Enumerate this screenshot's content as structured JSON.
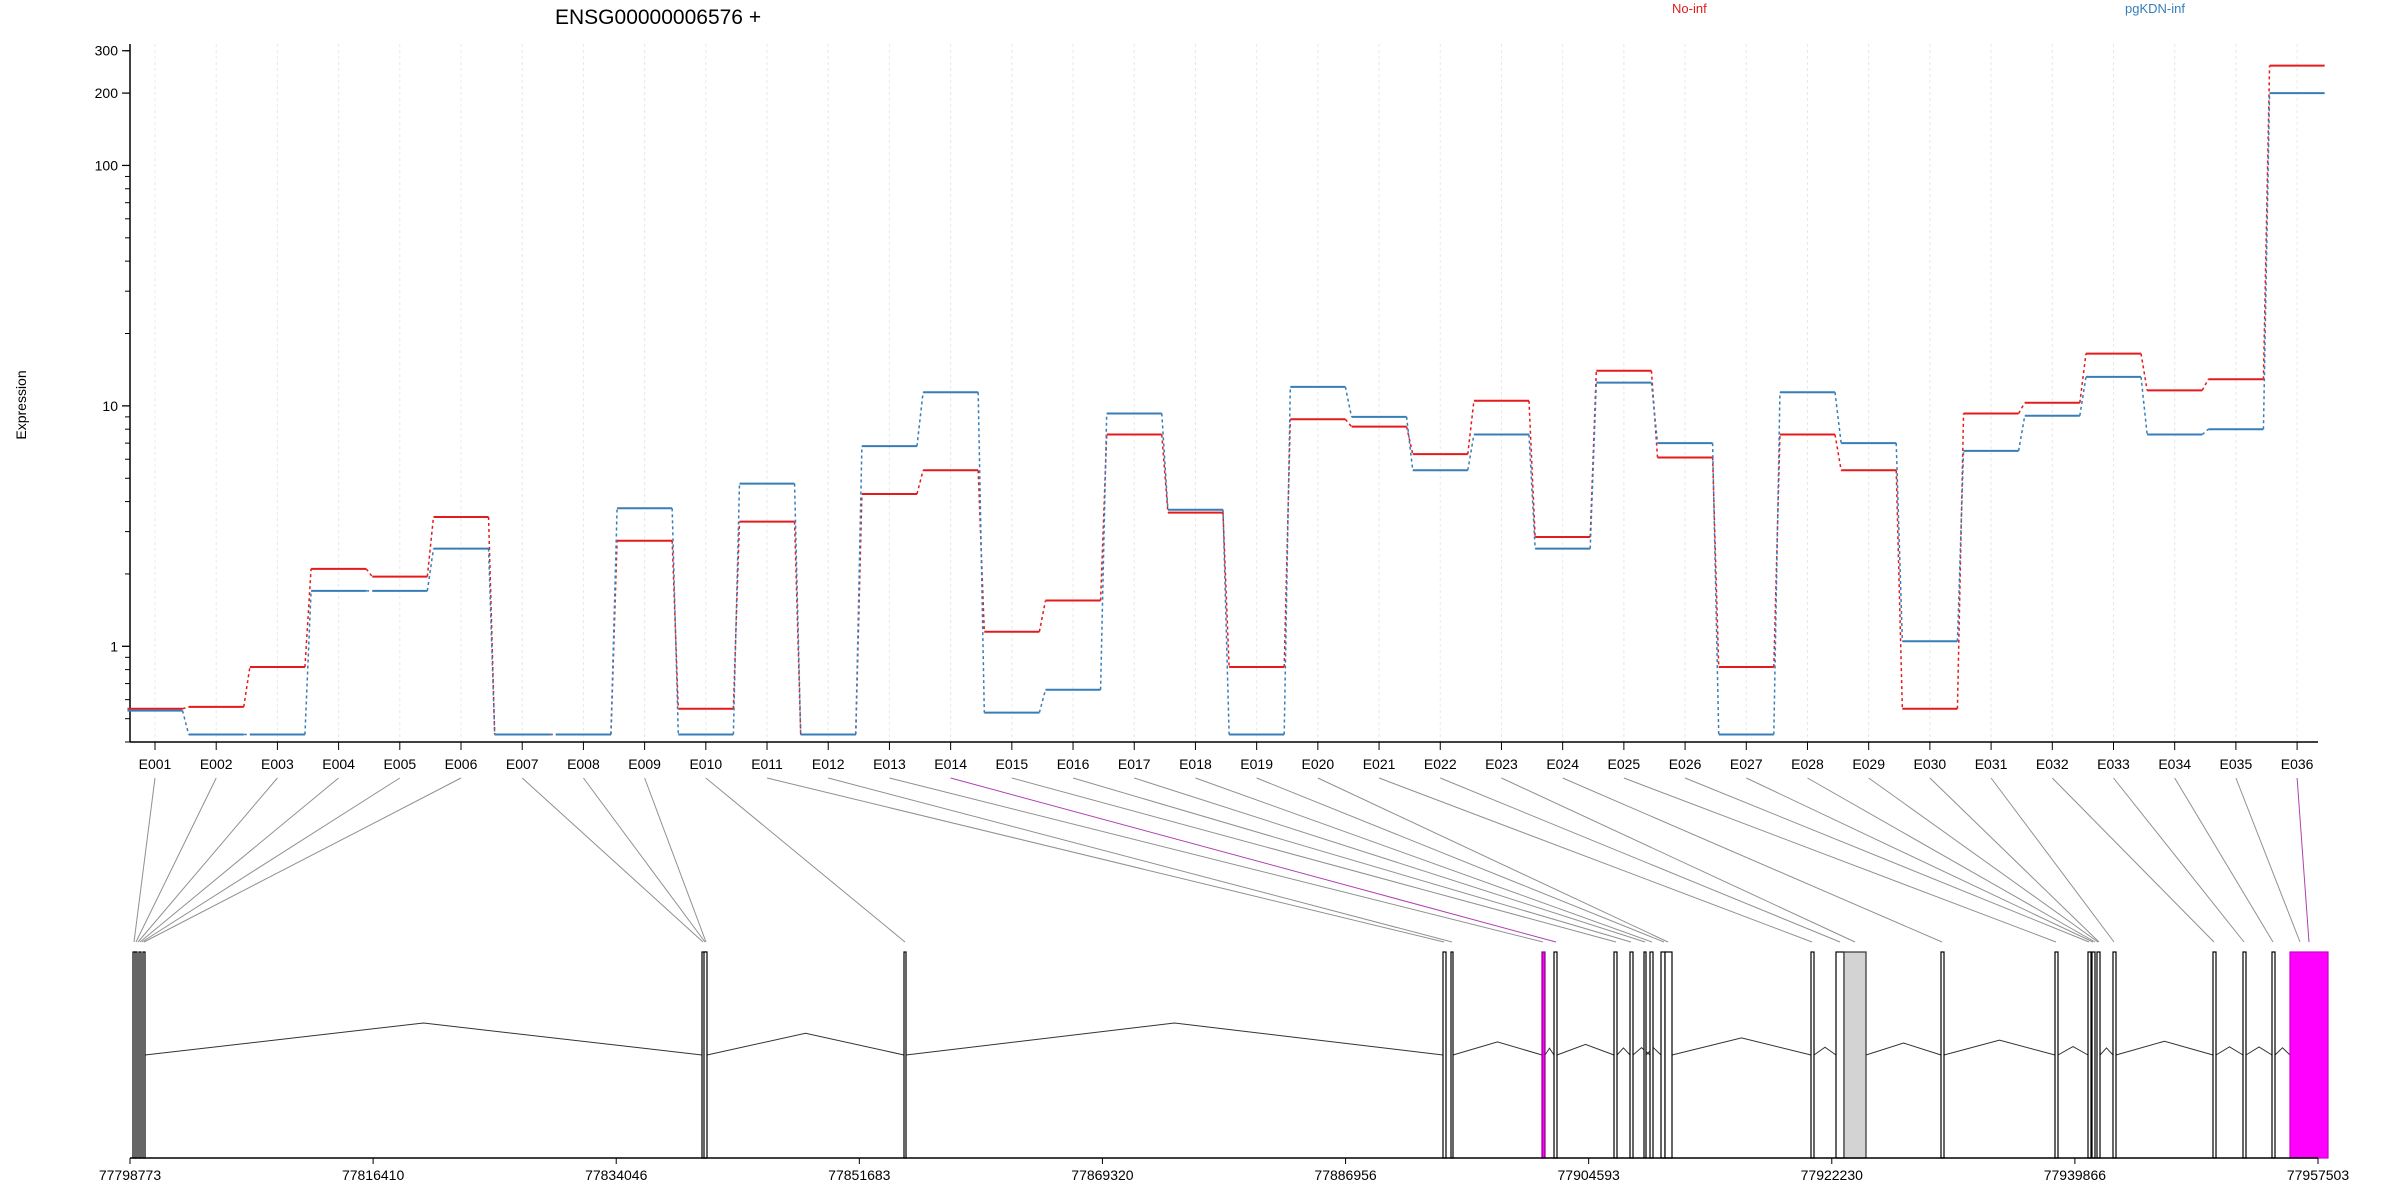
{
  "title": "ENSG00000006576 +",
  "chart_data": {
    "type": "line",
    "title": "ENSG00000006576 +",
    "ylabel": "Expression",
    "xlabel": "",
    "yscale": "log",
    "ylim": [
      0.4,
      320
    ],
    "yticks": [
      1,
      10,
      100,
      200,
      300
    ],
    "grid": "vertical dashed",
    "legend_placement": "top",
    "categories": [
      "E001",
      "E002",
      "E003",
      "E004",
      "E005",
      "E006",
      "E007",
      "E008",
      "E009",
      "E010",
      "E011",
      "E012",
      "E013",
      "E014",
      "E015",
      "E016",
      "E017",
      "E018",
      "E019",
      "E020",
      "E021",
      "E022",
      "E023",
      "E024",
      "E025",
      "E026",
      "E027",
      "E028",
      "E029",
      "E030",
      "E031",
      "E032",
      "E033",
      "E034",
      "E035",
      "E036"
    ],
    "series": [
      {
        "name": "No-inf",
        "color": "#e41a1c",
        "values": [
          0.55,
          0.56,
          0.82,
          2.1,
          1.95,
          3.45,
          0.43,
          0.43,
          2.75,
          0.55,
          3.3,
          0.43,
          4.3,
          5.4,
          1.15,
          1.55,
          7.6,
          3.6,
          0.82,
          8.8,
          8.2,
          6.3,
          10.5,
          2.85,
          14.0,
          6.1,
          0.82,
          7.6,
          5.4,
          0.55,
          9.3,
          10.3,
          16.5,
          11.6,
          12.9,
          260
        ]
      },
      {
        "name": "pgKDN-inf",
        "color": "#377eb8",
        "values": [
          0.54,
          0.43,
          0.43,
          1.7,
          1.7,
          2.55,
          0.43,
          0.43,
          3.75,
          0.43,
          4.75,
          0.43,
          6.8,
          11.4,
          0.53,
          0.66,
          9.3,
          3.7,
          0.43,
          12.0,
          9.0,
          5.4,
          7.6,
          2.55,
          12.5,
          7.0,
          0.43,
          11.4,
          7.0,
          1.05,
          6.5,
          9.1,
          13.2,
          7.6,
          8.0,
          200
        ]
      }
    ],
    "genomic_axis": {
      "tick_labels": [
        "77798773",
        "77816410",
        "77834046",
        "77851683",
        "77869320",
        "77886956",
        "77904593",
        "77922230",
        "77939866",
        "77957503"
      ],
      "start": 77798773,
      "end": 77957503
    },
    "exon_highlight_color": "#ff00ff",
    "highlighted_exons": [
      "E014",
      "E036"
    ],
    "shaded_exon": "E029"
  }
}
